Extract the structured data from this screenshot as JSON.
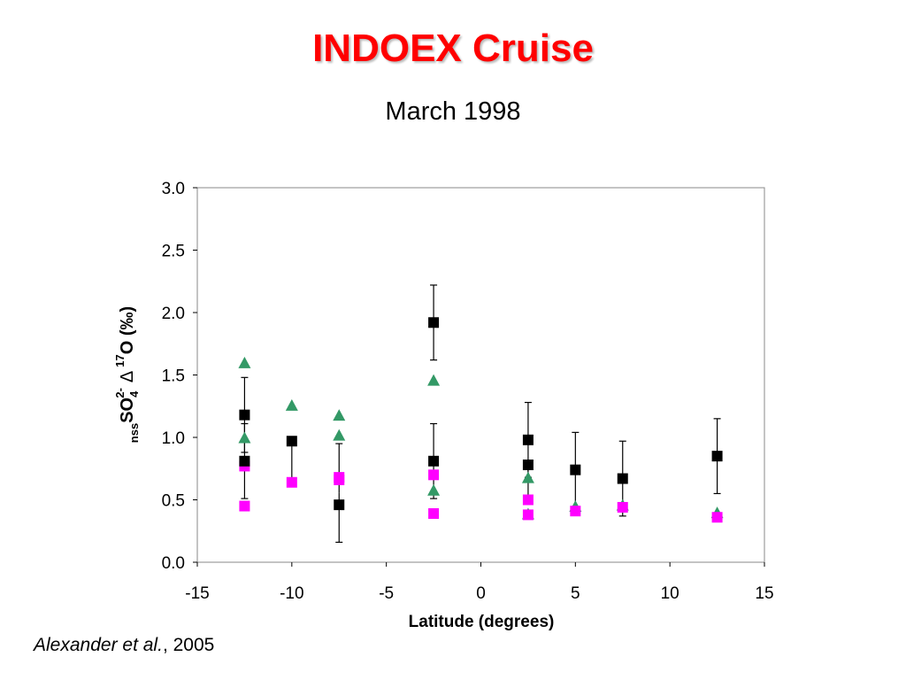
{
  "title": "INDOEX Cruise",
  "title_color": "#ff0000",
  "subtitle": "March 1998",
  "citation": {
    "authors": "Alexander et al.",
    "year": ", 2005"
  },
  "chart_data": {
    "type": "scatter",
    "xlabel": "Latitude (degrees)",
    "ylabel": {
      "prefix": "SO",
      "pre_subscript": "nss",
      "subscript": "4",
      "superscript": "2-",
      "delta": "Δ",
      "iso_superscript": "17",
      "suffix": "O (‰)"
    },
    "xlim": [
      -15,
      15
    ],
    "ylim": [
      0,
      3
    ],
    "x_ticks": [
      "-15",
      "-10",
      "-5",
      "0",
      "5",
      "10",
      "15"
    ],
    "y_ticks": [
      "0.0",
      "0.5",
      "1.0",
      "1.5",
      "2.0",
      "2.5",
      "3.0"
    ],
    "grid": false,
    "series": [
      {
        "marker": "square",
        "color": "#000000",
        "points": [
          {
            "x": -12.5,
            "y": 1.18,
            "err": 0.3
          },
          {
            "x": -12.5,
            "y": 0.81
          },
          {
            "x": -10,
            "y": 0.97
          },
          {
            "x": -7.5,
            "y": 0.46
          },
          {
            "x": -2.5,
            "y": 1.92,
            "err": 0.3
          },
          {
            "x": -2.5,
            "y": 0.81
          },
          {
            "x": 2.5,
            "y": 0.98,
            "err": 0.3
          },
          {
            "x": 2.5,
            "y": 0.78
          },
          {
            "x": 5,
            "y": 0.74
          },
          {
            "x": 7.5,
            "y": 0.67
          },
          {
            "x": 12.5,
            "y": 0.85,
            "err": 0.3
          }
        ],
        "lower_only_errors": [
          {
            "x": -12.5,
            "from": 0.81,
            "to": 0.51
          },
          {
            "x": -10,
            "from": 0.97,
            "to": 0.67
          },
          {
            "x": -2.5,
            "from": 0.81,
            "to": 0.51
          },
          {
            "x": 2.5,
            "from": 0.78,
            "to": 0.48
          },
          {
            "x": 5,
            "from": 0.74,
            "to": 0.44
          },
          {
            "x": 7.5,
            "from": 0.67,
            "to": 0.37
          }
        ],
        "upper_only_errors": [
          {
            "x": -12.5,
            "from": 0.81,
            "to": 1.11
          },
          {
            "x": -2.5,
            "from": 0.81,
            "to": 1.11
          },
          {
            "x": 5,
            "from": 0.74,
            "to": 1.04
          },
          {
            "x": 7.5,
            "from": 0.67,
            "to": 0.97
          }
        ],
        "bars_only": [
          {
            "x": -7.5,
            "low": 0.16,
            "high": 0.95
          }
        ]
      },
      {
        "marker": "square",
        "color": "#ff00ff",
        "points": [
          {
            "x": -12.5,
            "y": 0.45
          },
          {
            "x": -12.5,
            "y": 0.77
          },
          {
            "x": -10,
            "y": 0.64
          },
          {
            "x": -7.5,
            "y": 0.68
          },
          {
            "x": -7.5,
            "y": 0.66
          },
          {
            "x": -2.5,
            "y": 0.7
          },
          {
            "x": -2.5,
            "y": 0.39
          },
          {
            "x": 2.5,
            "y": 0.5
          },
          {
            "x": 2.5,
            "y": 0.38
          },
          {
            "x": 5,
            "y": 0.41
          },
          {
            "x": 7.5,
            "y": 0.44
          },
          {
            "x": 12.5,
            "y": 0.36
          }
        ]
      },
      {
        "marker": "triangle",
        "color": "#339966",
        "points": [
          {
            "x": -12.5,
            "y": 1.6
          },
          {
            "x": -12.5,
            "y": 1.0
          },
          {
            "x": -10,
            "y": 1.26
          },
          {
            "x": -7.5,
            "y": 1.18
          },
          {
            "x": -7.5,
            "y": 1.02
          },
          {
            "x": -2.5,
            "y": 1.46
          },
          {
            "x": -2.5,
            "y": 0.58
          },
          {
            "x": 2.5,
            "y": 0.68
          },
          {
            "x": 2.5,
            "y": 0.39
          },
          {
            "x": 5,
            "y": 0.45
          },
          {
            "x": 7.5,
            "y": 0.46
          },
          {
            "x": 12.5,
            "y": 0.4
          }
        ]
      }
    ]
  }
}
